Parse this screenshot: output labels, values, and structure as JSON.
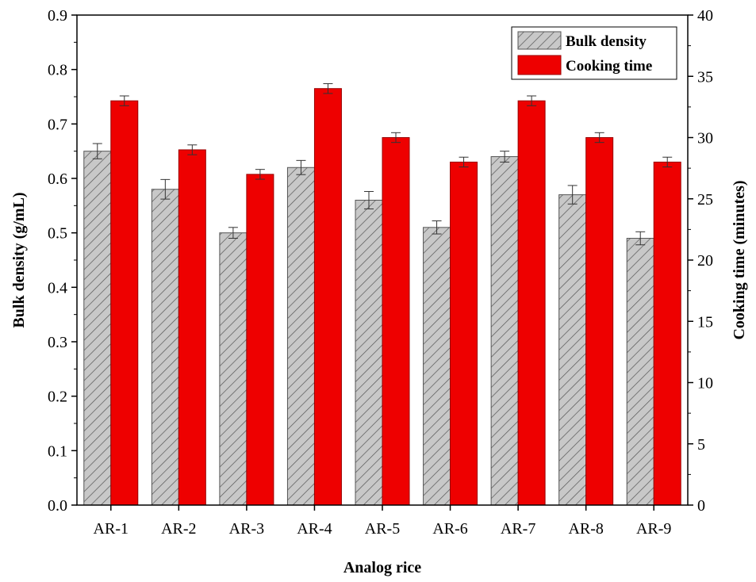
{
  "chart_data": {
    "type": "bar",
    "categories": [
      "AR-1",
      "AR-2",
      "AR-3",
      "AR-4",
      "AR-5",
      "AR-6",
      "AR-7",
      "AR-8",
      "AR-9"
    ],
    "series": [
      {
        "name": "Bulk density",
        "axis": "left",
        "values": [
          0.65,
          0.58,
          0.5,
          0.62,
          0.56,
          0.51,
          0.64,
          0.57,
          0.49
        ],
        "errors": [
          0.014,
          0.018,
          0.01,
          0.013,
          0.016,
          0.012,
          0.01,
          0.017,
          0.012
        ],
        "color": "#c8c8c8",
        "pattern": "diagonal-hatch"
      },
      {
        "name": "Cooking time",
        "axis": "right",
        "values": [
          33,
          29,
          27,
          34,
          30,
          28,
          33,
          30,
          28
        ],
        "errors": [
          0.4,
          0.4,
          0.4,
          0.4,
          0.4,
          0.4,
          0.4,
          0.4,
          0.4
        ],
        "color": "#ee0000"
      }
    ],
    "xlabel": "Analog rice",
    "ylabel": "Bulk density (g/mL)",
    "y2label": "Cooking time (minutes)",
    "ylim": [
      0,
      0.9
    ],
    "y2lim": [
      0,
      40
    ],
    "yticks": [
      "0.0",
      "0.1",
      "0.2",
      "0.3",
      "0.4",
      "0.5",
      "0.6",
      "0.7",
      "0.8",
      "0.9"
    ],
    "y2ticks": [
      "0",
      "5",
      "10",
      "15",
      "20",
      "25",
      "30",
      "35",
      "40"
    ],
    "grid": false,
    "legend_position": "top-right"
  }
}
